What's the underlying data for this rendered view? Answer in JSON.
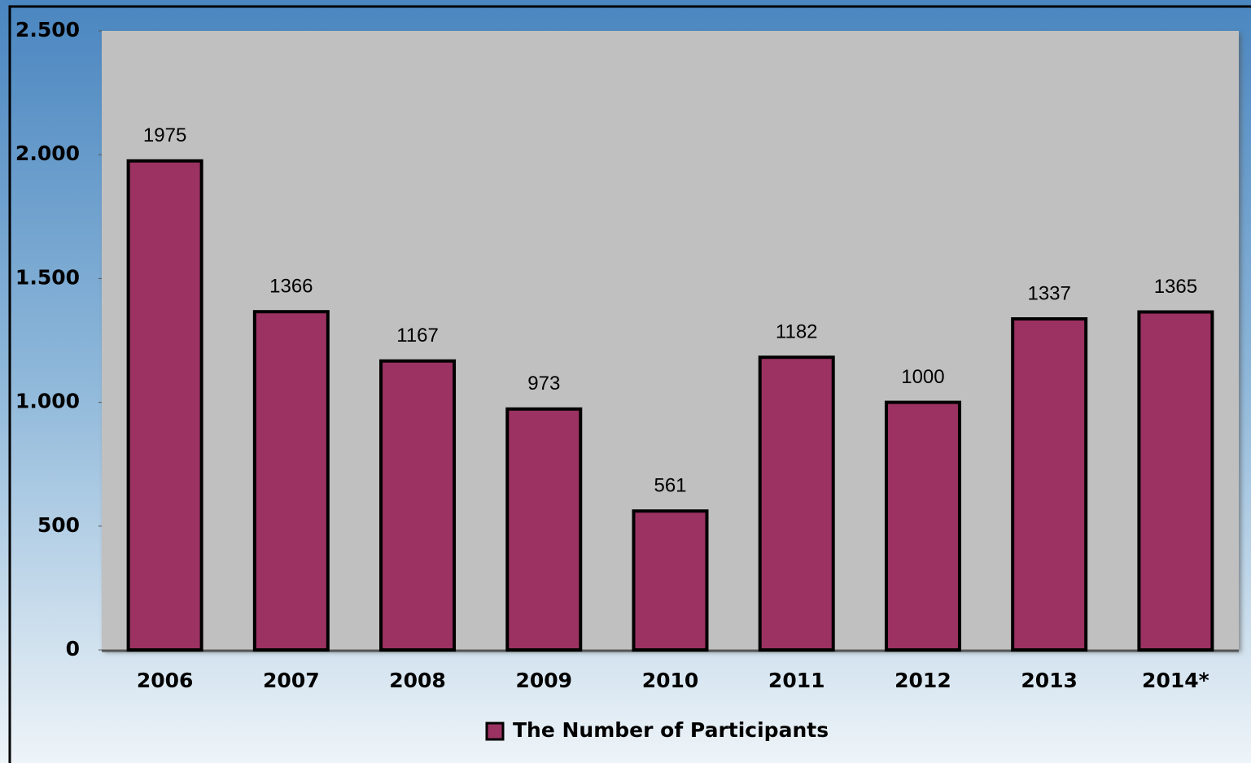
{
  "chart_data": {
    "type": "bar",
    "categories": [
      "2006",
      "2007",
      "2008",
      "2009",
      "2010",
      "2011",
      "2012",
      "2013",
      "2014*"
    ],
    "series": [
      {
        "name": "The Number of Participants",
        "color": "#9b3262",
        "values": [
          1975,
          1366,
          1167,
          973,
          561,
          1182,
          1000,
          1337,
          1365
        ]
      }
    ],
    "ylim": [
      0,
      2500
    ],
    "yticks": [
      0,
      500,
      {
        "value": 1000,
        "label": "1.000"
      },
      {
        "value": 1500,
        "label": "1.500"
      },
      {
        "value": 2000,
        "label": "2.000"
      },
      {
        "value": 2500,
        "label": "2.500"
      }
    ],
    "grid": false,
    "legend": "bottom"
  }
}
